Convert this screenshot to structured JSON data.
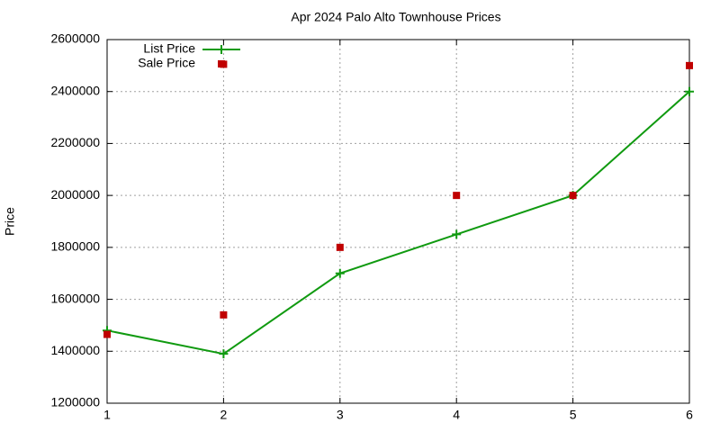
{
  "chart_data": {
    "type": "line",
    "title": "Apr 2024 Palo Alto Townhouse Prices",
    "ylabel": "Price",
    "xlim": [
      1,
      6
    ],
    "xticks": [
      1,
      2,
      3,
      4,
      5,
      6
    ],
    "ylim": [
      1200000,
      2600000
    ],
    "yticks": [
      1200000,
      1400000,
      1600000,
      1800000,
      2000000,
      2200000,
      2400000,
      2600000
    ],
    "grid": true,
    "legend": "top-left",
    "series": [
      {
        "name": "List Price",
        "color": "#109a10",
        "style": "linespoints",
        "x": [
          1,
          2,
          3,
          4,
          5,
          6
        ],
        "values": [
          1480000,
          1390000,
          1700000,
          1850000,
          2000000,
          2400000
        ]
      },
      {
        "name": "Sale Price",
        "color": "#c00000",
        "style": "points",
        "x": [
          1,
          2,
          2,
          3,
          4,
          5,
          6
        ],
        "values": [
          1465000,
          2505000,
          1540000,
          1800000,
          2000000,
          2000000,
          2500000
        ]
      }
    ]
  }
}
